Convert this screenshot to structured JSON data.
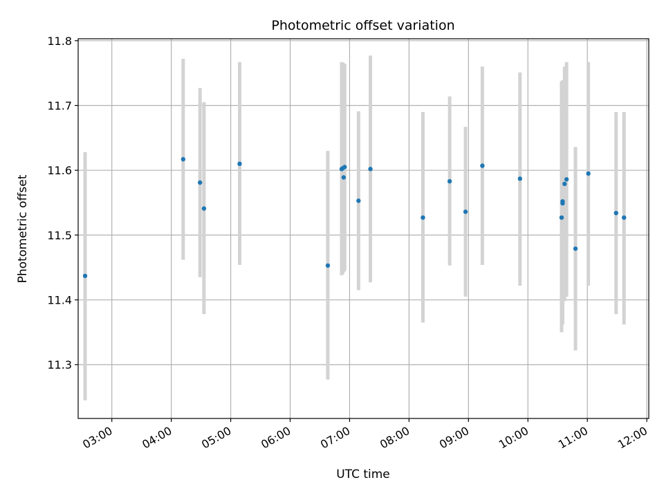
{
  "chart_data": {
    "type": "scatter",
    "title": "Photometric offset variation",
    "xlabel": "UTC time",
    "ylabel": "Photometric offset",
    "x_ticks": [
      "03:00",
      "04:00",
      "05:00",
      "06:00",
      "07:00",
      "08:00",
      "09:00",
      "10:00",
      "11:00",
      "12:00"
    ],
    "y_ticks": [
      "11.3",
      "11.4",
      "11.5",
      "11.6",
      "11.7",
      "11.8"
    ],
    "xlim": [
      "02:26",
      "12:02"
    ],
    "ylim": [
      11.217,
      11.803
    ],
    "grid": true,
    "colors": {
      "points": "#1f77b4",
      "errorbars": "#d3d3d3",
      "grid": "#b0b0b0"
    },
    "points": [
      {
        "x": "02:33",
        "y": 11.437,
        "ylow": 11.245,
        "yhigh": 11.628
      },
      {
        "x": "04:12",
        "y": 11.617,
        "ylow": 11.462,
        "yhigh": 11.772
      },
      {
        "x": "04:29",
        "y": 11.581,
        "ylow": 11.435,
        "yhigh": 11.727
      },
      {
        "x": "04:33",
        "y": 11.541,
        "ylow": 11.378,
        "yhigh": 11.705
      },
      {
        "x": "05:09",
        "y": 11.61,
        "ylow": 11.454,
        "yhigh": 11.767
      },
      {
        "x": "06:38",
        "y": 11.453,
        "ylow": 11.277,
        "yhigh": 11.63
      },
      {
        "x": "06:52",
        "y": 11.602,
        "ylow": 11.438,
        "yhigh": 11.767
      },
      {
        "x": "06:53",
        "y": 11.603,
        "ylow": 11.44,
        "yhigh": 11.766
      },
      {
        "x": "06:54",
        "y": 11.589,
        "ylow": 11.443,
        "yhigh": 11.765
      },
      {
        "x": "06:55",
        "y": 11.605,
        "ylow": 11.445,
        "yhigh": 11.764
      },
      {
        "x": "07:09",
        "y": 11.553,
        "ylow": 11.415,
        "yhigh": 11.691
      },
      {
        "x": "07:21",
        "y": 11.602,
        "ylow": 11.427,
        "yhigh": 11.777
      },
      {
        "x": "08:14",
        "y": 11.527,
        "ylow": 11.365,
        "yhigh": 11.69
      },
      {
        "x": "08:41",
        "y": 11.583,
        "ylow": 11.453,
        "yhigh": 11.714
      },
      {
        "x": "08:57",
        "y": 11.536,
        "ylow": 11.405,
        "yhigh": 11.667
      },
      {
        "x": "09:14",
        "y": 11.607,
        "ylow": 11.454,
        "yhigh": 11.76
      },
      {
        "x": "09:52",
        "y": 11.587,
        "ylow": 11.422,
        "yhigh": 11.751
      },
      {
        "x": "10:34",
        "y": 11.527,
        "ylow": 11.35,
        "yhigh": 11.737
      },
      {
        "x": "10:35",
        "y": 11.552,
        "ylow": 11.365,
        "yhigh": 11.739
      },
      {
        "x": "10:35",
        "y": 11.549,
        "ylow": 11.362,
        "yhigh": 11.736
      },
      {
        "x": "10:37",
        "y": 11.579,
        "ylow": 11.398,
        "yhigh": 11.76
      },
      {
        "x": "10:39",
        "y": 11.586,
        "ylow": 11.405,
        "yhigh": 11.767
      },
      {
        "x": "10:48",
        "y": 11.479,
        "ylow": 11.322,
        "yhigh": 11.636
      },
      {
        "x": "11:01",
        "y": 11.595,
        "ylow": 11.422,
        "yhigh": 11.767
      },
      {
        "x": "11:29",
        "y": 11.534,
        "ylow": 11.378,
        "yhigh": 11.69
      },
      {
        "x": "11:37",
        "y": 11.527,
        "ylow": 11.362,
        "yhigh": 11.69
      }
    ]
  }
}
